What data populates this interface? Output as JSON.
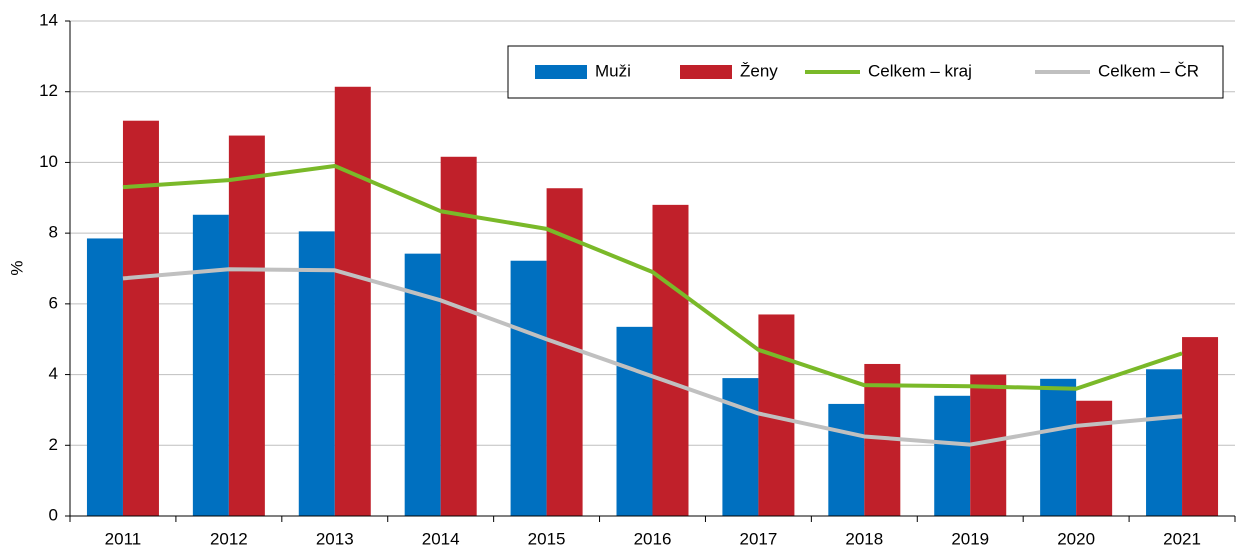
{
  "chart_data": {
    "type": "bar_line",
    "y_label": "%",
    "categories": [
      "2011",
      "2012",
      "2013",
      "2014",
      "2015",
      "2016",
      "2017",
      "2018",
      "2019",
      "2020",
      "2021"
    ],
    "series": [
      {
        "name": "Muži",
        "type": "bar",
        "color": "#0070c0",
        "values": [
          7.85,
          8.52,
          8.05,
          7.42,
          7.22,
          5.35,
          3.9,
          3.17,
          3.4,
          3.88,
          4.15
        ]
      },
      {
        "name": "Ženy",
        "type": "bar",
        "color": "#c0202a",
        "values": [
          11.18,
          10.76,
          12.14,
          10.16,
          9.27,
          8.8,
          5.7,
          4.3,
          4.0,
          3.26,
          5.06
        ]
      },
      {
        "name": "Celkem – kraj",
        "type": "line",
        "color": "#7ab929",
        "values": [
          9.3,
          9.5,
          9.9,
          8.62,
          8.12,
          6.9,
          4.7,
          3.7,
          3.67,
          3.6,
          4.6
        ]
      },
      {
        "name": "Celkem – ČR",
        "type": "line",
        "color": "#c0c0c0",
        "values": [
          6.72,
          6.98,
          6.95,
          6.1,
          5.0,
          3.95,
          2.9,
          2.25,
          2.02,
          2.55,
          2.82
        ]
      }
    ],
    "ylim": [
      0,
      14
    ],
    "yticks": [
      0,
      2,
      4,
      6,
      8,
      10,
      12,
      14
    ],
    "grid": true,
    "legend": "upper right"
  }
}
